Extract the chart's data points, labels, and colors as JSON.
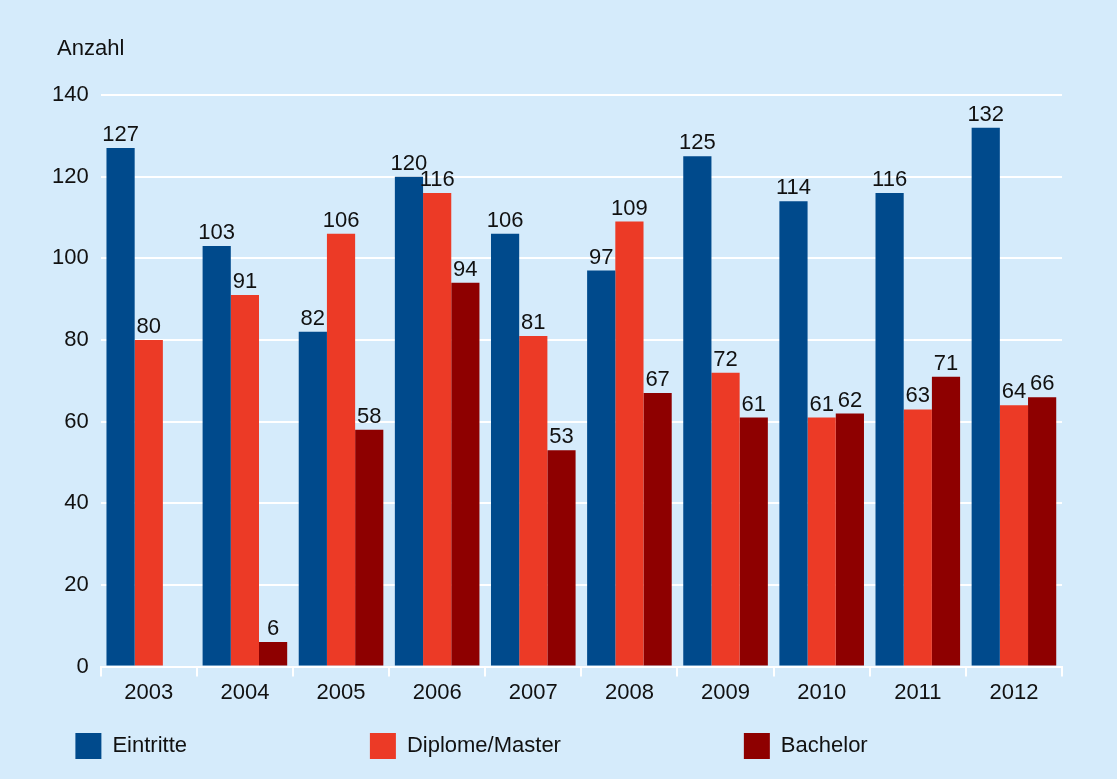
{
  "chart_data": {
    "type": "bar",
    "ylabel": "Anzahl",
    "categories": [
      "2003",
      "2004",
      "2005",
      "2006",
      "2007",
      "2008",
      "2009",
      "2010",
      "2011",
      "2012"
    ],
    "series": [
      {
        "name": "Eintritte",
        "color": "#004a8c",
        "values": [
          127,
          103,
          82,
          120,
          106,
          97,
          125,
          114,
          116,
          132
        ]
      },
      {
        "name": "Diplome/Master",
        "color": "#ec3a26",
        "values": [
          80,
          91,
          106,
          116,
          81,
          109,
          72,
          61,
          63,
          64
        ]
      },
      {
        "name": "Bachelor",
        "color": "#8e0000",
        "values": [
          null,
          6,
          58,
          94,
          53,
          67,
          61,
          62,
          71,
          66
        ]
      }
    ],
    "ylim": [
      0,
      140
    ],
    "yticks": [
      0,
      20,
      40,
      60,
      80,
      100,
      120,
      140
    ],
    "grid": "y",
    "legend": "bottom",
    "data_labels": true
  }
}
